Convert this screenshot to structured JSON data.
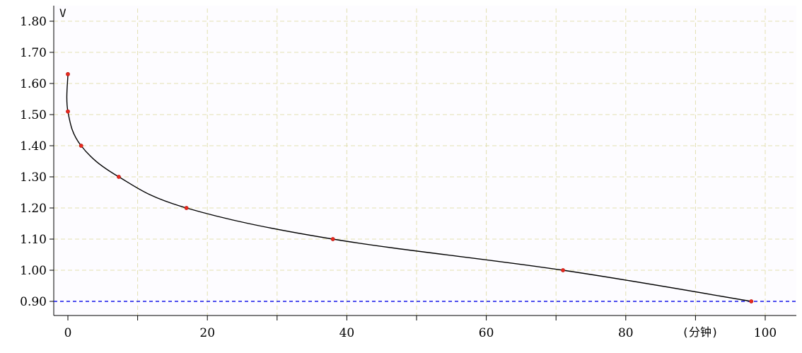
{
  "chart_data": {
    "type": "line",
    "ylabel": "V",
    "xlabel": "(分钟)",
    "xlim": [
      0,
      100
    ],
    "ylim": [
      0.9,
      1.8
    ],
    "x_ticks": [
      0,
      20,
      40,
      60,
      80,
      100
    ],
    "x_tick_labels": [
      "0",
      "20",
      "40",
      "60",
      "80",
      "100"
    ],
    "y_ticks": [
      0.9,
      1.0,
      1.1,
      1.2,
      1.3,
      1.4,
      1.5,
      1.6,
      1.7,
      1.8
    ],
    "y_tick_labels": [
      "0.90",
      "1.00",
      "1.10",
      "1.20",
      "1.30",
      "1.40",
      "1.50",
      "1.60",
      "1.70",
      "1.80"
    ],
    "grid": true,
    "series": [
      {
        "marker_points": [
          {
            "x": 0.0,
            "y": 1.63
          },
          {
            "x": 0.0,
            "y": 1.51
          },
          {
            "x": 1.9,
            "y": 1.4
          },
          {
            "x": 7.3,
            "y": 1.3
          },
          {
            "x": 17.0,
            "y": 1.2
          },
          {
            "x": 38.0,
            "y": 1.1
          },
          {
            "x": 71.0,
            "y": 1.0
          },
          {
            "x": 98.0,
            "y": 0.9
          }
        ]
      }
    ],
    "reference_line": {
      "y": 0.9
    },
    "colors": {
      "background": "#fdfcff",
      "grid": "#e2dfb0",
      "axis": "#000000",
      "line": "#000000",
      "marker": "#e8291c",
      "reference": "#1515e8"
    }
  }
}
